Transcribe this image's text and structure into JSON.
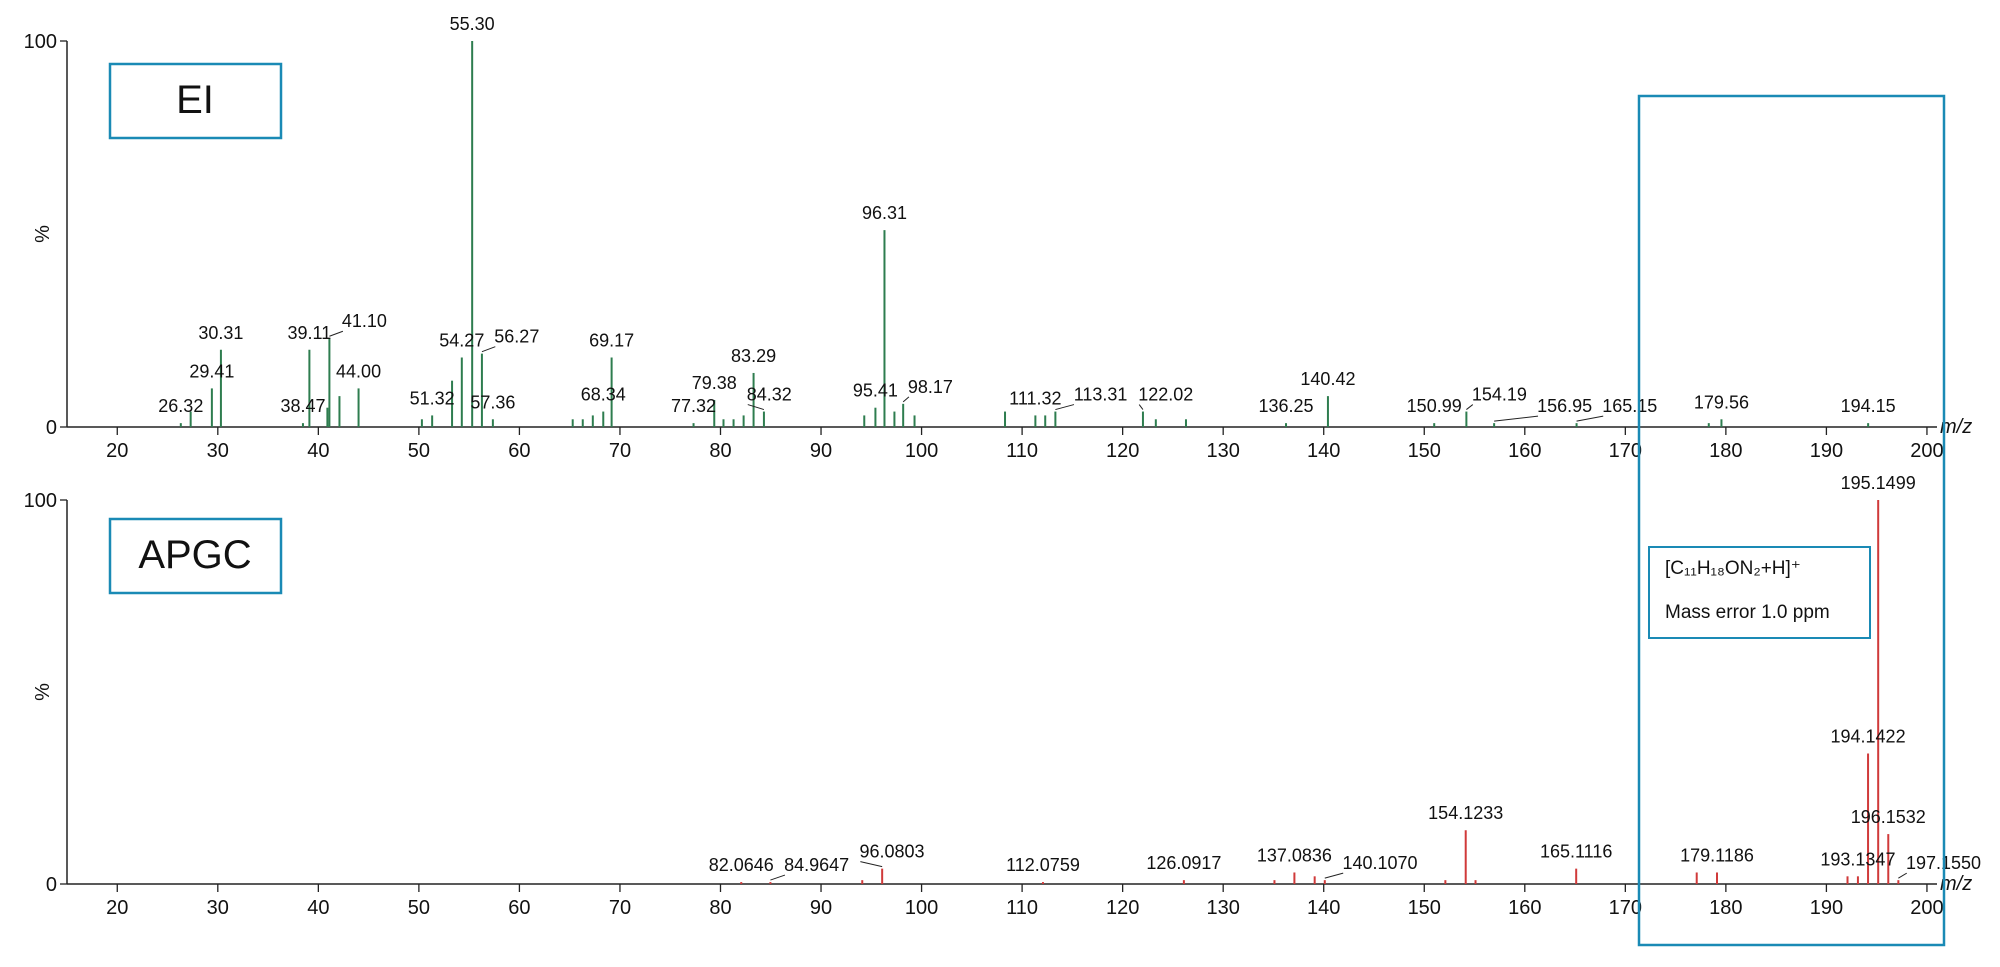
{
  "chart_data": [
    {
      "type": "bar",
      "title": "EI",
      "color": "#2e7d4f",
      "xlabel": "m/z",
      "ylabel": "%",
      "xlim": [
        15,
        201
      ],
      "ylim": [
        0,
        100
      ],
      "xticks": [
        20,
        30,
        40,
        50,
        60,
        70,
        80,
        90,
        100,
        110,
        120,
        130,
        140,
        150,
        160,
        170,
        180,
        190,
        200
      ],
      "yticks": [
        0,
        100
      ],
      "x": [
        26.32,
        27.3,
        29.41,
        30.31,
        38.47,
        39.11,
        40.9,
        41.1,
        42.1,
        44.0,
        50.3,
        51.32,
        53.3,
        54.27,
        55.3,
        56.27,
        57.36,
        65.3,
        66.3,
        67.3,
        68.34,
        69.17,
        77.32,
        79.38,
        80.3,
        81.3,
        82.3,
        83.29,
        84.32,
        94.3,
        95.41,
        96.31,
        97.3,
        98.17,
        99.3,
        108.3,
        111.32,
        112.3,
        113.31,
        122.02,
        123.3,
        126.3,
        136.25,
        140.42,
        150.99,
        154.19,
        156.95,
        165.15,
        178.3,
        179.56,
        194.15
      ],
      "values": [
        1,
        4,
        10,
        20,
        1,
        20,
        5,
        23,
        8,
        10,
        2,
        3,
        12,
        18,
        100,
        19,
        2,
        2,
        2,
        3,
        4,
        18,
        1,
        7,
        2,
        2,
        3,
        14,
        4,
        3,
        5,
        51,
        4,
        6,
        3,
        4,
        3,
        3,
        4,
        4,
        2,
        2,
        1,
        8,
        1,
        4,
        1,
        1,
        1,
        2,
        1
      ],
      "labels": [
        "26.32",
        null,
        "29.41",
        "30.31",
        "38.47",
        "39.11",
        null,
        "41.10",
        null,
        "44.00",
        null,
        "51.32",
        null,
        "54.27",
        "55.30",
        "56.27",
        "57.36",
        null,
        null,
        null,
        "68.34",
        "69.17",
        "77.32",
        "79.38",
        null,
        null,
        null,
        "83.29",
        "84.32",
        null,
        "95.41",
        "96.31",
        null,
        "98.17",
        null,
        null,
        "111.32",
        null,
        "113.31",
        "122.02",
        null,
        null,
        "136.25",
        "140.42",
        "150.99",
        "154.19",
        "156.95",
        "165.15",
        null,
        "179.56",
        "194.15"
      ]
    },
    {
      "type": "bar",
      "title": "APGC",
      "color": "#d03a3a",
      "xlabel": "m/z",
      "ylabel": "%",
      "xlim": [
        15,
        201
      ],
      "ylim": [
        0,
        100
      ],
      "xticks": [
        20,
        30,
        40,
        50,
        60,
        70,
        80,
        90,
        100,
        110,
        120,
        130,
        140,
        150,
        160,
        170,
        180,
        190,
        200
      ],
      "yticks": [
        0,
        100
      ],
      "annotations": [
        "[C₁₁H₁₈ON₂+H]⁺",
        "Mass error 1.0 ppm"
      ],
      "x": [
        82.0646,
        84.9647,
        94.1,
        96.0803,
        112.0759,
        126.0917,
        135.1,
        137.0836,
        139.1,
        140.107,
        152.1,
        154.1233,
        155.1,
        165.1116,
        177.1,
        179.1186,
        192.1,
        193.1347,
        194.1422,
        195.1499,
        196.1532,
        197.155
      ],
      "values": [
        0.5,
        0.5,
        1,
        4,
        0.5,
        1,
        1,
        3,
        2,
        1,
        1,
        14,
        1,
        4,
        3,
        3,
        2,
        2,
        34,
        100,
        13,
        1
      ],
      "labels": [
        "82.0646",
        "84.9647",
        null,
        "96.0803",
        "112.0759",
        "126.0917",
        null,
        "137.0836",
        null,
        "140.1070",
        null,
        "154.1233",
        null,
        "165.1116",
        null,
        "179.1186",
        null,
        "193.1347",
        "194.1422",
        "195.1499",
        "196.1532",
        "197.1550"
      ]
    }
  ]
}
